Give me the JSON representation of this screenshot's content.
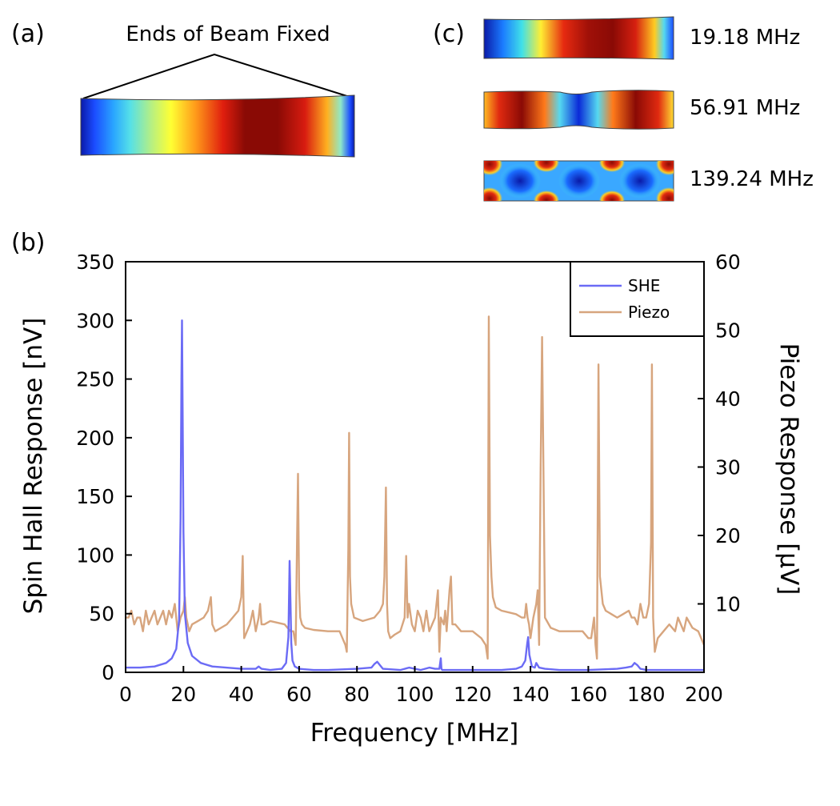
{
  "panels": {
    "a": {
      "label": "(a)",
      "annotation": "Ends of Beam Fixed"
    },
    "c": {
      "label": "(c)",
      "modes": [
        {
          "frequency_label": "19.18 MHz"
        },
        {
          "frequency_label": "56.91 MHz"
        },
        {
          "frequency_label": "139.24 MHz"
        }
      ]
    },
    "b": {
      "label": "(b)"
    }
  },
  "colors": {
    "she": "#6b6bf5",
    "piezo": "#d7a57e",
    "axis": "#000000"
  },
  "chart_data": {
    "type": "line",
    "title": "",
    "xlabel": "Frequency [MHz]",
    "ylabel": "Spin Hall Response [nV]",
    "y2label": "Piezo Response [μV]",
    "xlim": [
      0,
      200
    ],
    "ylim": [
      0,
      350
    ],
    "y2lim": [
      0,
      60
    ],
    "xticks": [
      0,
      20,
      40,
      60,
      80,
      100,
      120,
      140,
      160,
      180,
      200
    ],
    "yticks": [
      0,
      50,
      100,
      150,
      200,
      250,
      300,
      350
    ],
    "y2ticks": [
      10,
      20,
      30,
      40,
      50,
      60
    ],
    "legend": {
      "position": "top-right",
      "entries": [
        "SHE",
        "Piezo"
      ]
    },
    "series": [
      {
        "name": "SHE",
        "axis": "left",
        "x": [
          0,
          5,
          10,
          14,
          16,
          17.5,
          18.5,
          19,
          19.3,
          19.5,
          19.7,
          20,
          20.5,
          21.5,
          23,
          26,
          30,
          40,
          45,
          46,
          47,
          50,
          54,
          55.5,
          56.3,
          56.7,
          57,
          57.3,
          57.7,
          58.5,
          60,
          65,
          70,
          80,
          85,
          86,
          87,
          88,
          89,
          95,
          98,
          100,
          102,
          105,
          107,
          108.5,
          109,
          109.2,
          109.5,
          110,
          115,
          120,
          130,
          135,
          137,
          138.2,
          138.9,
          139.2,
          139.6,
          140.5,
          141.5,
          142,
          143,
          145,
          150,
          160,
          170,
          173,
          175,
          176,
          177,
          178,
          180,
          190,
          200
        ],
        "values": [
          4,
          4,
          5,
          8,
          12,
          20,
          45,
          130,
          250,
          300,
          230,
          120,
          50,
          25,
          14,
          8,
          5,
          3,
          3,
          5,
          3,
          2,
          3,
          8,
          30,
          95,
          60,
          25,
          10,
          5,
          3,
          2,
          2,
          3,
          4,
          7,
          9,
          6,
          3,
          2,
          4,
          3,
          2,
          4,
          3,
          3,
          12,
          3,
          2,
          2,
          2,
          2,
          2,
          3,
          5,
          10,
          25,
          30,
          15,
          5,
          4,
          8,
          4,
          3,
          2,
          2,
          3,
          4,
          5,
          8,
          6,
          3,
          2,
          2,
          2
        ]
      },
      {
        "name": "Piezo",
        "axis": "right",
        "x": [
          0,
          1,
          2,
          3,
          4,
          5,
          6,
          7,
          8,
          9,
          10,
          11,
          12,
          13,
          14,
          15,
          16,
          17,
          18,
          19,
          20,
          20.5,
          21,
          22,
          23,
          25,
          27,
          28.5,
          29.5,
          30,
          31,
          33,
          35,
          37,
          39,
          40,
          40.5,
          41,
          42,
          43,
          44,
          45,
          46,
          46.5,
          47,
          48,
          50,
          55,
          57,
          58,
          58.8,
          59.3,
          59.6,
          60,
          60.4,
          61,
          62,
          65,
          70,
          74,
          75,
          76,
          76.5,
          77,
          77.3,
          77.6,
          78,
          79,
          82,
          86,
          88,
          89,
          89.5,
          90,
          90.4,
          90.8,
          91.5,
          93,
          95,
          96.5,
          97,
          97.5,
          98,
          99,
          100,
          101,
          102,
          103,
          104,
          105,
          106,
          107,
          108,
          108.5,
          109,
          110,
          110.5,
          111,
          112,
          112.5,
          113,
          114,
          116,
          120,
          123,
          124.5,
          125.2,
          125.6,
          126,
          126.5,
          127,
          128,
          130,
          135,
          137,
          138,
          138.5,
          139,
          139.5,
          140,
          141,
          141.5,
          142,
          142.5,
          143,
          143.5,
          144,
          145,
          147,
          150,
          155,
          158,
          160,
          161,
          162,
          162.5,
          163,
          163.5,
          164,
          165,
          166,
          168,
          170,
          172,
          174,
          175,
          176,
          177,
          178,
          179,
          180,
          181,
          181.7,
          182,
          182.4,
          183,
          184,
          186,
          188,
          190,
          191,
          192,
          193,
          194,
          196,
          198,
          200
        ],
        "values": [
          8,
          8,
          9,
          7,
          8,
          8,
          6,
          9,
          7,
          8,
          9,
          7,
          8,
          9,
          7,
          9,
          8,
          10,
          6,
          8,
          9,
          11,
          8,
          6,
          7,
          7.5,
          8,
          9,
          11,
          7,
          6,
          6.5,
          7,
          8,
          9,
          11,
          17,
          5,
          6,
          7,
          9,
          6,
          8,
          10,
          7,
          7,
          7.5,
          7,
          6,
          6,
          4,
          20,
          29,
          12,
          8,
          7,
          6.5,
          6.2,
          6,
          6,
          5,
          4,
          3,
          18,
          35,
          14,
          10,
          8,
          7.5,
          8,
          9,
          10,
          14,
          27,
          10,
          6,
          5,
          5.5,
          6,
          8,
          17,
          8,
          10,
          7,
          6,
          9,
          8,
          6,
          9,
          6,
          7,
          8,
          12,
          3,
          8,
          7,
          9,
          6,
          12,
          14,
          7,
          7,
          6,
          6,
          5,
          4,
          2,
          52,
          20,
          14,
          11,
          9.5,
          9,
          8.5,
          8,
          8,
          10,
          8,
          7,
          5,
          8,
          9,
          10,
          12,
          4,
          30,
          49,
          8,
          6.5,
          6,
          6,
          6,
          5,
          5,
          8,
          4,
          2,
          45,
          14,
          10,
          9,
          8.5,
          8,
          8.5,
          9,
          8,
          8,
          7,
          10,
          8,
          8,
          10,
          19,
          45,
          8,
          3,
          5,
          6,
          7,
          6,
          8,
          7,
          6,
          8,
          6.5,
          6,
          4
        ]
      }
    ]
  }
}
